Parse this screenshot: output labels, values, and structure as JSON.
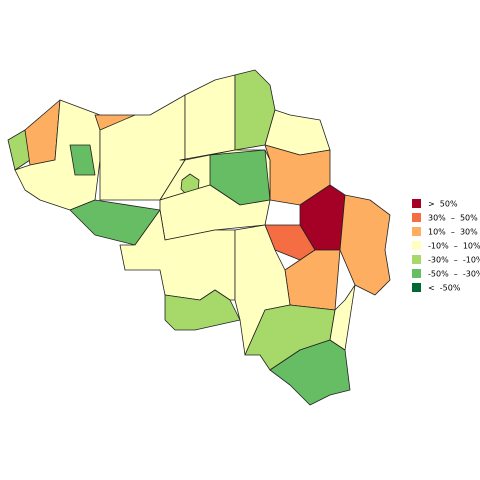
{
  "legend": [
    {
      "label": ">  50%",
      "color": "#a50026"
    },
    {
      "label": "30%  –  50%",
      "color": "#f46d43"
    },
    {
      "label": "10%  –  30%",
      "color": "#fdae61"
    },
    {
      "label": "-10%  –  10%",
      "color": "#ffffbf"
    },
    {
      "label": "-30%  –  -10%",
      "color": "#a6d96a"
    },
    {
      "label": "-50%  –  -30%",
      "color": "#66bd63"
    },
    {
      "label": "<  -50%",
      "color": "#006837"
    }
  ]
}
